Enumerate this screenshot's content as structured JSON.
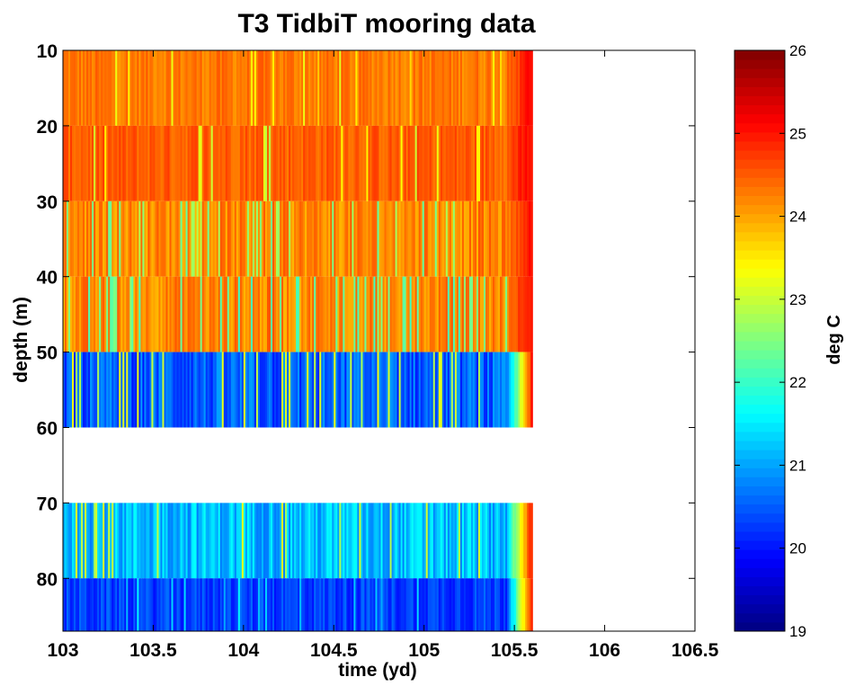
{
  "chart_data": {
    "type": "heatmap",
    "title": "T3 TidbiT mooring data",
    "xlabel": "time (yd)",
    "ylabel": "depth (m)",
    "xlim": [
      103,
      106.5
    ],
    "ylim": [
      10,
      87
    ],
    "y_reversed": true,
    "x_ticks": [
      "103",
      "103.5",
      "104",
      "104.5",
      "105",
      "105.5",
      "106",
      "106.5"
    ],
    "y_ticks": [
      "10",
      "20",
      "30",
      "40",
      "50",
      "60",
      "70",
      "80"
    ],
    "data_x_range": [
      103,
      105.6
    ],
    "colorbar": {
      "label": "deg C",
      "colormap": "jet",
      "range": [
        19,
        26
      ],
      "ticks": [
        "19",
        "20",
        "21",
        "22",
        "23",
        "24",
        "25",
        "26"
      ]
    },
    "depth_bands": [
      {
        "depth_range": [
          10,
          20
        ],
        "typical_temp": 24.3,
        "variability": 0.25,
        "dip_temp": 23.4,
        "dip_rate": 0.05
      },
      {
        "depth_range": [
          20,
          30
        ],
        "typical_temp": 24.5,
        "variability": 0.25,
        "dip_temp": 23.2,
        "dip_rate": 0.06
      },
      {
        "depth_range": [
          30,
          40
        ],
        "typical_temp": 24.2,
        "variability": 0.35,
        "dip_temp": 22.6,
        "dip_rate": 0.12
      },
      {
        "depth_range": [
          40,
          50
        ],
        "typical_temp": 24.2,
        "variability": 0.35,
        "dip_temp": 22.3,
        "dip_rate": 0.18
      },
      {
        "depth_range": [
          50,
          60
        ],
        "typical_temp": 20.5,
        "variability": 0.5,
        "dip_temp": 23.0,
        "dip_rate": 0.12
      },
      {
        "depth_range": [
          70,
          80
        ],
        "typical_temp": 21.2,
        "variability": 0.5,
        "dip_temp": 23.0,
        "dip_rate": 0.1
      },
      {
        "depth_range": [
          80,
          87
        ],
        "typical_temp": 20.3,
        "variability": 0.35,
        "dip_temp": 21.3,
        "dip_rate": 0.08
      }
    ],
    "end_warming": {
      "x_start": 105.45,
      "x_end": 105.6,
      "temp_end": 25.2
    },
    "grid": false
  }
}
